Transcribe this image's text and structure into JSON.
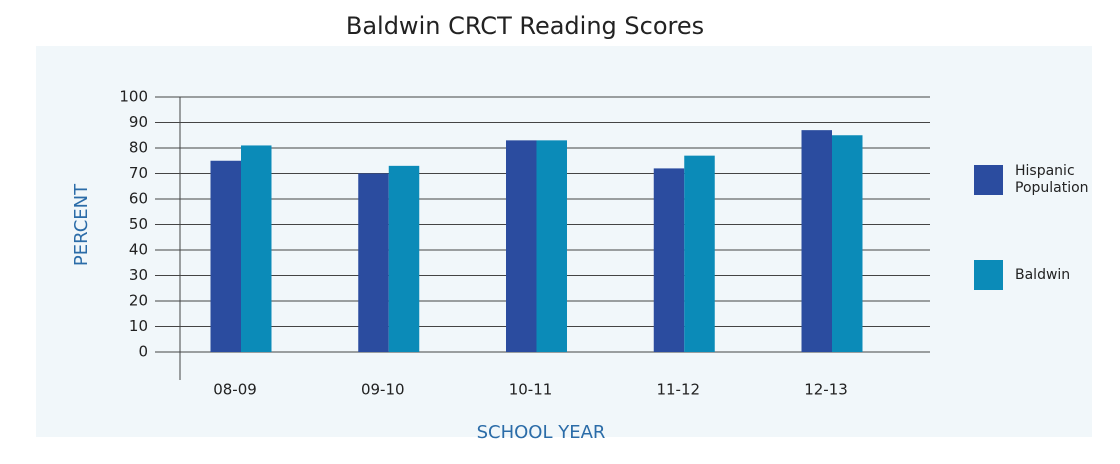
{
  "chart_data": {
    "type": "bar",
    "title": "Baldwin CRCT Reading Scores",
    "x_label": "SCHOOL YEAR",
    "y_label": "PERCENT",
    "categories": [
      "08-09",
      "09-10",
      "10-11",
      "11-12",
      "12-13"
    ],
    "series": [
      {
        "name": "Hispanic Population",
        "color": "#2b4c9f",
        "values": [
          75,
          70,
          83,
          72,
          87
        ]
      },
      {
        "name": "Baldwin",
        "color": "#0b8bb8",
        "values": [
          81,
          73,
          83,
          77,
          85
        ]
      }
    ],
    "ylim": [
      0,
      100
    ],
    "yticks": [
      0,
      10,
      20,
      30,
      40,
      50,
      60,
      70,
      80,
      90,
      100
    ],
    "grid": true,
    "legend": "right"
  }
}
